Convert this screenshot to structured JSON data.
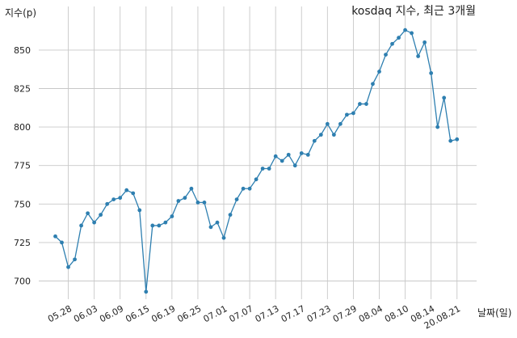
{
  "chart_data": {
    "type": "line",
    "title": "kosdaq 지수, 최근 3개월",
    "xlabel": "날짜(일)",
    "ylabel": "지수(p)",
    "ylim": [
      685,
      870
    ],
    "grid": true,
    "line_color": "#2e7fb0",
    "y_ticks": [
      700,
      725,
      750,
      775,
      800,
      825,
      850
    ],
    "x_ticks": [
      {
        "label": "05.28",
        "index": 3
      },
      {
        "label": "06.03",
        "index": 7
      },
      {
        "label": "06.09",
        "index": 11
      },
      {
        "label": "06.15",
        "index": 15
      },
      {
        "label": "06.19",
        "index": 19
      },
      {
        "label": "06.25",
        "index": 23
      },
      {
        "label": "07.01",
        "index": 27
      },
      {
        "label": "07.07",
        "index": 31
      },
      {
        "label": "07.13",
        "index": 35
      },
      {
        "label": "07.17",
        "index": 39
      },
      {
        "label": "07.23",
        "index": 43
      },
      {
        "label": "07.29",
        "index": 47
      },
      {
        "label": "08.04",
        "index": 51
      },
      {
        "label": "08.10",
        "index": 55
      },
      {
        "label": "08.14",
        "index": 59
      },
      {
        "label": "20.08.21",
        "index": 63
      }
    ],
    "values": [
      729,
      725,
      709,
      714,
      736,
      744,
      738,
      743,
      750,
      753,
      754,
      759,
      757,
      746,
      693,
      736,
      736,
      738,
      742,
      752,
      754,
      760,
      751,
      751,
      735,
      738,
      728,
      743,
      753,
      760,
      760,
      766,
      773,
      773,
      781,
      778,
      782,
      775,
      783,
      782,
      791,
      795,
      802,
      795,
      802,
      808,
      809,
      815,
      815,
      828,
      836,
      847,
      854,
      858,
      863,
      861,
      846,
      855,
      835,
      800,
      819,
      791,
      792
    ]
  }
}
